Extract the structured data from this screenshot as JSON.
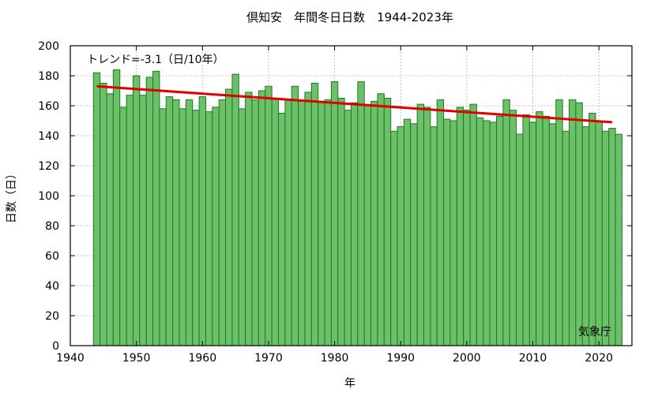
{
  "chart_data": {
    "type": "bar",
    "title": "倶知安　年間冬日日数　1944-2023年",
    "xlabel": "年",
    "ylabel": "日数（日）",
    "xlim": [
      1940,
      2025
    ],
    "ylim": [
      0,
      200
    ],
    "xticks": [
      1940,
      1950,
      1960,
      1970,
      1980,
      1990,
      2000,
      2010,
      2020
    ],
    "yticks": [
      0,
      20,
      40,
      60,
      80,
      100,
      120,
      140,
      160,
      180,
      200
    ],
    "grid": true,
    "bar_color": "#6cc06a",
    "bar_edge_color": "#1e7a1e",
    "trend_color": "#e00000",
    "trend_label": "トレンド=-3.1（日/10年）",
    "source_label": "気象庁",
    "x": [
      1944,
      1945,
      1946,
      1947,
      1948,
      1949,
      1950,
      1951,
      1952,
      1953,
      1954,
      1955,
      1956,
      1957,
      1958,
      1959,
      1960,
      1961,
      1962,
      1963,
      1964,
      1965,
      1966,
      1967,
      1968,
      1969,
      1970,
      1971,
      1972,
      1973,
      1974,
      1975,
      1976,
      1977,
      1978,
      1979,
      1980,
      1981,
      1982,
      1983,
      1984,
      1985,
      1986,
      1987,
      1988,
      1989,
      1990,
      1991,
      1992,
      1993,
      1994,
      1995,
      1996,
      1997,
      1998,
      1999,
      2000,
      2001,
      2002,
      2003,
      2004,
      2005,
      2006,
      2007,
      2008,
      2009,
      2010,
      2011,
      2012,
      2013,
      2014,
      2015,
      2016,
      2017,
      2018,
      2019,
      2020,
      2021,
      2022,
      2023
    ],
    "values": [
      182,
      175,
      168,
      184,
      159,
      167,
      180,
      167,
      179,
      183,
      158,
      166,
      164,
      158,
      164,
      157,
      166,
      156,
      159,
      164,
      171,
      181,
      158,
      169,
      164,
      170,
      173,
      165,
      155,
      164,
      173,
      163,
      169,
      175,
      163,
      164,
      176,
      165,
      157,
      162,
      176,
      160,
      163,
      168,
      165,
      143,
      146,
      151,
      148,
      161,
      159,
      146,
      164,
      151,
      150,
      159,
      157,
      161,
      152,
      150,
      149,
      153,
      164,
      157,
      141,
      154,
      149,
      156,
      153,
      148,
      164,
      143,
      164,
      162,
      146,
      155,
      150,
      143,
      145,
      141
    ],
    "trend": {
      "x": [
        1944,
        2022
      ],
      "y": [
        173,
        149
      ]
    }
  }
}
